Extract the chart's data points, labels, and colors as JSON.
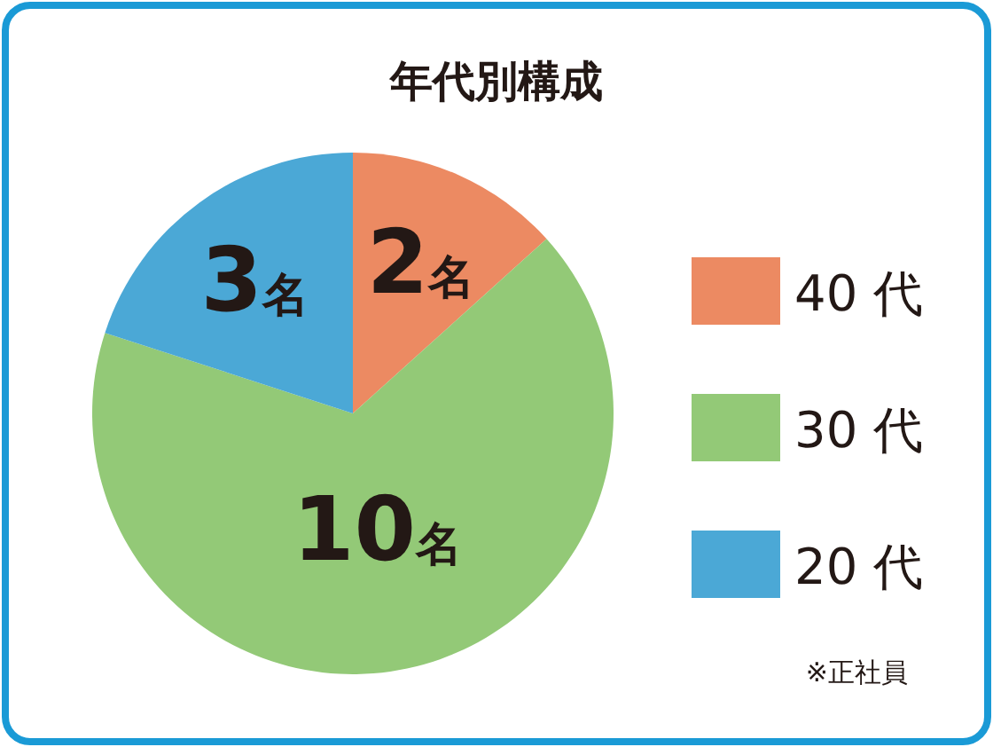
{
  "chart_data": {
    "type": "pie",
    "title": "年代別構成",
    "categories": [
      "40 代",
      "30 代",
      "20 代"
    ],
    "values": [
      2,
      10,
      3
    ],
    "colors": [
      "#ec8a62",
      "#93c977",
      "#4ba8d6"
    ],
    "value_labels": [
      "2名",
      "10名",
      "3名"
    ],
    "legend": "right",
    "annotations": [
      "※正社員"
    ]
  }
}
